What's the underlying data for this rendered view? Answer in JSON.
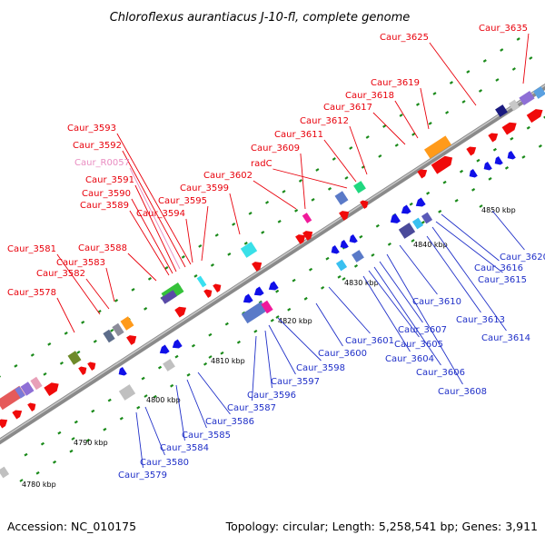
{
  "title": "Chloroflexus aurantiacus J-10-fl, complete genome",
  "footer": {
    "accession": "Accession: NC_010175",
    "topology": "Topology: circular; Length: 5,258,541 bp; Genes: 3,911"
  },
  "colors": {
    "forward_label": "#e8000b",
    "reverse_label": "#1f2fc8",
    "rna_label": "#e98cc1",
    "backbone": "#8c8c8c",
    "tick": "#1a8a1a"
  },
  "chart_data": {
    "type": "genome-map",
    "scale_ticks_kbp": [
      "4780 kbp",
      "4790 kbp",
      "4800 kbp",
      "4810 kbp",
      "4820 kbp",
      "4830 kbp",
      "4840 kbp",
      "4850 kbp"
    ],
    "forward_genes": [
      "Caur_3578",
      "Caur_3581",
      "Caur_3582",
      "Caur_3583",
      "Caur_3588",
      "Caur_3589",
      "Caur_3590",
      "Caur_3591",
      "Caur_R0057",
      "Caur_3592",
      "Caur_3593",
      "Caur_3594",
      "Caur_3595",
      "Caur_3599",
      "Caur_3602",
      "Caur_3609",
      "radC",
      "Caur_3611",
      "Caur_3612",
      "Caur_3617",
      "Caur_3618",
      "Caur_3619",
      "Caur_3625",
      "Caur_3635"
    ],
    "reverse_genes": [
      "Caur_3579",
      "Caur_3580",
      "Caur_3584",
      "Caur_3585",
      "Caur_3586",
      "Caur_3587",
      "Caur_3596",
      "Caur_3597",
      "Caur_3598",
      "Caur_3600",
      "Caur_3601",
      "Caur_3604",
      "Caur_3605",
      "Caur_3606",
      "Caur_3607",
      "Caur_3608",
      "Caur_3610",
      "Caur_3613",
      "Caur_3614",
      "Caur_3615",
      "Caur_3616",
      "Caur_3620"
    ]
  }
}
